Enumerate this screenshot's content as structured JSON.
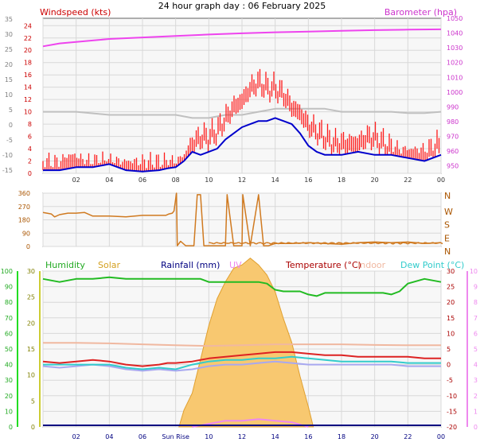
{
  "title": "24 hour graph day : 06 February 2025",
  "colors": {
    "wind": "#ff1a1a",
    "wind_dark": "#cc0000",
    "avg": "#0000cc",
    "gust_grey": "#c0c0c0",
    "baro": "#ee44ee",
    "dir": "#d07a20",
    "humidity": "#22bb22",
    "solar": "#d4a020",
    "rain": "#000080",
    "uv": "#ee88ee",
    "temp": "#dd2222",
    "indoor": "#f0b8a0",
    "dew": "#33cccc",
    "feels": "#a8a8f0",
    "left_axis_grey": "#808080",
    "uv_axis": "#a060c0"
  },
  "chart_data": [
    {
      "type": "line",
      "labels": {
        "left": "Windspeed (kts)",
        "right": "Barometer (hpa)"
      },
      "left_axis_ticks": [
        "0",
        "2",
        "4",
        "6",
        "8",
        "10",
        "12",
        "14",
        "16",
        "18",
        "20",
        "22",
        "24"
      ],
      "left_axis_ticks_grey": [
        "-15",
        "-10",
        "-5",
        "0",
        "5",
        "10",
        "15",
        "20",
        "25",
        "30",
        "35"
      ],
      "right_axis_ticks": [
        "950",
        "960",
        "970",
        "980",
        "990",
        "1000",
        "1010",
        "1020",
        "1030",
        "1040",
        "1050"
      ],
      "x_ticks": [
        "02",
        "04",
        "06",
        "08",
        "10",
        "12",
        "14",
        "16",
        "18",
        "20",
        "22",
        "00"
      ],
      "x_range": [
        0,
        24
      ],
      "ylim_left": [
        0,
        25.2
      ],
      "ylim_right": [
        945,
        1050
      ],
      "series": [
        {
          "key": "gust",
          "x": [
            0,
            0.5,
            1,
            1.5,
            2,
            2.5,
            3,
            3.5,
            4,
            4.5,
            5,
            5.5,
            6,
            6.5,
            7,
            7.5,
            8,
            8.5,
            9,
            9.5,
            10,
            10.5,
            11,
            11.5,
            12,
            12.5,
            13,
            13.5,
            14,
            14.5,
            15,
            15.5,
            16,
            16.5,
            17,
            17.5,
            18,
            18.5,
            19,
            19.5,
            20,
            20.5,
            21,
            21.5,
            22,
            22.5,
            23,
            23.5,
            24
          ],
          "values": [
            2,
            2,
            2,
            3,
            3,
            2,
            2,
            2,
            2,
            2,
            2,
            2,
            2,
            2,
            2,
            2,
            2,
            3,
            6,
            7,
            7,
            8,
            10,
            12,
            13,
            15,
            16,
            15,
            15,
            14,
            12,
            11,
            9,
            8,
            7,
            6,
            6,
            6,
            6,
            7,
            7,
            6,
            5,
            4,
            4,
            4,
            4,
            5,
            6
          ]
        },
        {
          "key": "average",
          "x": [
            0,
            1,
            2,
            3,
            4,
            5,
            6,
            7,
            7.5,
            8,
            8.5,
            9,
            9.5,
            10,
            10.5,
            11,
            11.5,
            12,
            12.5,
            13,
            13.5,
            14,
            14.5,
            15,
            15.5,
            16,
            16.5,
            17,
            17.5,
            18,
            19,
            20,
            21,
            22,
            23,
            24
          ],
          "values": [
            0.5,
            0.5,
            1,
            1,
            1.5,
            0.5,
            0.3,
            0.5,
            0.8,
            1,
            2,
            3.5,
            3,
            3.5,
            4,
            5.5,
            6.5,
            7.5,
            8,
            8.5,
            8.5,
            9,
            8.5,
            8,
            6.5,
            4.5,
            3.5,
            3,
            3,
            3,
            3.5,
            3,
            3,
            2.5,
            2,
            3
          ]
        },
        {
          "key": "gust_grey",
          "x": [
            0,
            2,
            4,
            6,
            7,
            8,
            9,
            10,
            11,
            12,
            13,
            14,
            15,
            16,
            17,
            18,
            19,
            20,
            21,
            22,
            23,
            24
          ],
          "values": [
            10,
            10,
            9.5,
            9.5,
            9.5,
            9.5,
            9,
            9,
            9.5,
            9.5,
            10,
            10.5,
            10.5,
            10.5,
            10.5,
            10,
            10,
            10,
            10,
            9.8,
            9.8,
            10
          ]
        },
        {
          "key": "barometer",
          "x": [
            0,
            1,
            2,
            3,
            4,
            6,
            8,
            10,
            12,
            14,
            16,
            18,
            20,
            22,
            24
          ],
          "values": [
            1031,
            1033,
            1034,
            1035,
            1036,
            1037,
            1038,
            1039,
            1039.8,
            1040.5,
            1041,
            1041.5,
            1042,
            1042.3,
            1042.5
          ]
        }
      ]
    },
    {
      "type": "line",
      "left_axis_ticks": [
        "0",
        "90",
        "180",
        "270",
        "360"
      ],
      "right_axis_ticks": [
        "N",
        "E",
        "S",
        "W",
        "N"
      ],
      "x_range": [
        0,
        24
      ],
      "ylim": [
        0,
        360
      ],
      "series": [
        {
          "key": "direction",
          "x": [
            0,
            0.5,
            0.7,
            1,
            1.5,
            2,
            2.5,
            3,
            4,
            5,
            6,
            6.5,
            7,
            7.4,
            7.6,
            7.8,
            7.9,
            8.05,
            8.1,
            8.3,
            8.6,
            9.1,
            9.3,
            9.5,
            9.7,
            10,
            11,
            11.1,
            11.5,
            12,
            12.05,
            12.5,
            13,
            13.3,
            13.6,
            14,
            15,
            16,
            17,
            18,
            19,
            20,
            21,
            22,
            23,
            24
          ],
          "values": [
            230,
            220,
            200,
            215,
            225,
            225,
            230,
            205,
            205,
            200,
            210,
            210,
            210,
            210,
            220,
            225,
            240,
            370,
            5,
            35,
            5,
            5,
            350,
            350,
            5,
            5,
            5,
            350,
            5,
            5,
            350,
            5,
            350,
            5,
            5,
            20,
            20,
            25,
            20,
            15,
            25,
            30,
            25,
            30,
            20,
            25
          ]
        }
      ]
    },
    {
      "type": "line",
      "labels": [
        "Humidity",
        "Solar",
        "Rainfall (mm)",
        "UV",
        "Temperature (°C)",
        "Indoor",
        "Dew Point (°C)"
      ],
      "left_axis_ticks_humidity": [
        "0",
        "10",
        "20",
        "30",
        "40",
        "50",
        "60",
        "70",
        "80",
        "90",
        "100"
      ],
      "left_axis_ticks_solar": [
        "0",
        "5",
        "10",
        "15",
        "20",
        "25",
        "30"
      ],
      "right_axis_ticks_uv": [
        "-20",
        "-15",
        "-10",
        "-5",
        "0",
        "5",
        "10",
        "15",
        "20",
        "25",
        "30"
      ],
      "right_axis_ticks_extra": [
        "0",
        "1",
        "2",
        "3",
        "4",
        "5",
        "6",
        "7",
        "8",
        "9",
        "10"
      ],
      "x_ticks": [
        "02",
        "04",
        "06",
        "Sun Rise",
        "10",
        "12",
        "14",
        "16",
        "18",
        "20",
        "22",
        "00"
      ],
      "sunrise_label": "08",
      "x_range": [
        0,
        24
      ],
      "ylim_temp": [
        -20,
        30
      ],
      "series": [
        {
          "key": "humidity_pct",
          "x": [
            0,
            1,
            2,
            3,
            4,
            5,
            6,
            7,
            8,
            9,
            9.5,
            10,
            11,
            12,
            13,
            13.5,
            14,
            14.5,
            15,
            15.5,
            16,
            16.5,
            17,
            18,
            19,
            20,
            20.5,
            21,
            21.5,
            22,
            23,
            24
          ],
          "values": [
            95,
            93,
            95,
            95,
            96,
            95,
            95,
            95,
            95,
            95,
            95,
            93,
            93,
            93,
            93,
            92,
            88,
            87,
            87,
            87,
            85,
            84,
            86,
            86,
            86,
            86,
            86,
            85,
            87,
            92,
            95,
            93
          ]
        },
        {
          "key": "temperature",
          "x": [
            0,
            1,
            2,
            3,
            4,
            5,
            6,
            7,
            7.5,
            8,
            9,
            10,
            11,
            12,
            13,
            14,
            15,
            16,
            17,
            18,
            19,
            20,
            21,
            22,
            23,
            24
          ],
          "values": [
            1,
            0.5,
            1,
            1.5,
            1,
            0,
            -0.5,
            0,
            0.5,
            0.5,
            1,
            2,
            2.5,
            3,
            3.5,
            4,
            4,
            3.5,
            3,
            3,
            2.5,
            2.5,
            2.5,
            2.5,
            2,
            2
          ]
        },
        {
          "key": "dew_point",
          "x": [
            0,
            1,
            2,
            3,
            4,
            5,
            6,
            7,
            8,
            9,
            10,
            11,
            12,
            13,
            14,
            15,
            16,
            17,
            18,
            19,
            20,
            21,
            22,
            23,
            24
          ],
          "values": [
            0,
            0,
            0,
            0,
            0,
            -1,
            -1.5,
            -1,
            -1.5,
            0,
            1,
            1.5,
            1.5,
            2,
            2,
            2.5,
            2,
            1.5,
            1,
            1,
            1,
            1,
            0.5,
            0.5,
            0.5
          ]
        },
        {
          "key": "feels_like",
          "x": [
            0,
            1,
            2,
            3,
            4,
            5,
            6,
            7,
            8,
            9,
            10,
            11,
            12,
            13,
            14,
            15,
            16,
            17,
            18,
            19,
            20,
            21,
            22,
            23,
            24
          ],
          "values": [
            -0.5,
            -1,
            -0.5,
            0,
            -0.5,
            -1.5,
            -2,
            -1.5,
            -2,
            -1.5,
            -0.5,
            0,
            0,
            0.5,
            1,
            0.5,
            0,
            0,
            0,
            0,
            0,
            0,
            -0.5,
            -0.5,
            -0.5
          ]
        },
        {
          "key": "indoor",
          "x": [
            0,
            2,
            4,
            6,
            8,
            10,
            12,
            14,
            16,
            18,
            20,
            22,
            24
          ],
          "values": [
            7,
            7,
            6.8,
            6.5,
            6.2,
            6,
            6.2,
            6.5,
            6.5,
            6.5,
            6.3,
            6.2,
            6.2
          ]
        },
        {
          "key": "solar",
          "x": [
            8.2,
            8.5,
            9,
            9.5,
            10,
            10.5,
            11,
            11.5,
            12,
            12.5,
            13,
            13.5,
            14,
            14.5,
            15,
            15.5,
            16,
            16.3
          ],
          "values": [
            0,
            0.5,
            1,
            2,
            3,
            3.8,
            4.3,
            4.7,
            4.8,
            5,
            4.8,
            4.5,
            4,
            3.2,
            2.5,
            1.5,
            0.6,
            0
          ]
        },
        {
          "key": "uv",
          "x": [
            9,
            10,
            11,
            12,
            13,
            14,
            15,
            16
          ],
          "values": [
            -20,
            -19,
            -18,
            -18,
            -17.5,
            -18,
            -18.5,
            -20
          ]
        }
      ]
    }
  ]
}
